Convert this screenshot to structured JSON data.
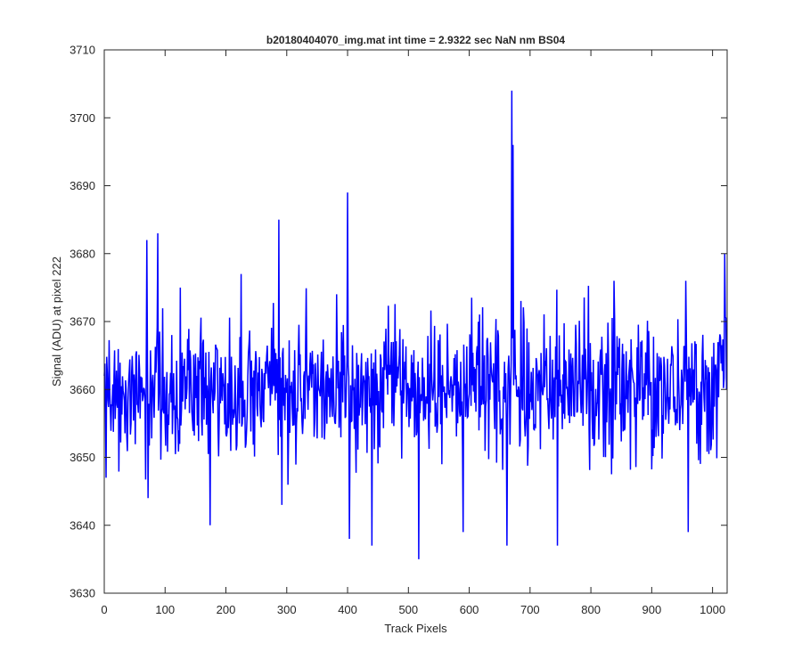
{
  "colors": {
    "line": "#0000ff",
    "axis": "#262626",
    "background": "#ffffff"
  },
  "chart_data": {
    "type": "line",
    "title": "b20180404070_img.mat int time = 2.9322 sec  NaN nm BS04",
    "xlabel": "Track Pixels",
    "ylabel": "Signal (ADU) at pixel 222",
    "xlim": [
      0,
      1024
    ],
    "ylim": [
      3630,
      3710
    ],
    "xticks": [
      0,
      100,
      200,
      300,
      400,
      500,
      600,
      700,
      800,
      900,
      1000
    ],
    "yticks": [
      3630,
      3640,
      3650,
      3660,
      3670,
      3680,
      3690,
      3700,
      3710
    ],
    "grid": false,
    "legend": "none",
    "series_description": "One noisy series, one point per track pixel 1 to 1024, mean about 3660 ADU with a typical spread of about 5 ADU.",
    "notable_points": [
      {
        "x": 0,
        "y": 3662
      },
      {
        "x": 3,
        "y": 3647
      },
      {
        "x": 70,
        "y": 3682
      },
      {
        "x": 72,
        "y": 3644
      },
      {
        "x": 88,
        "y": 3683
      },
      {
        "x": 125,
        "y": 3675
      },
      {
        "x": 174,
        "y": 3640
      },
      {
        "x": 225,
        "y": 3677
      },
      {
        "x": 287,
        "y": 3685
      },
      {
        "x": 292,
        "y": 3643
      },
      {
        "x": 400,
        "y": 3689
      },
      {
        "x": 403,
        "y": 3638
      },
      {
        "x": 440,
        "y": 3637
      },
      {
        "x": 517,
        "y": 3635
      },
      {
        "x": 590,
        "y": 3639
      },
      {
        "x": 662,
        "y": 3637
      },
      {
        "x": 670,
        "y": 3704
      },
      {
        "x": 672,
        "y": 3696
      },
      {
        "x": 745,
        "y": 3637
      },
      {
        "x": 960,
        "y": 3639
      },
      {
        "x": 1020,
        "y": 3680
      },
      {
        "x": 1023,
        "y": 3660
      }
    ]
  }
}
